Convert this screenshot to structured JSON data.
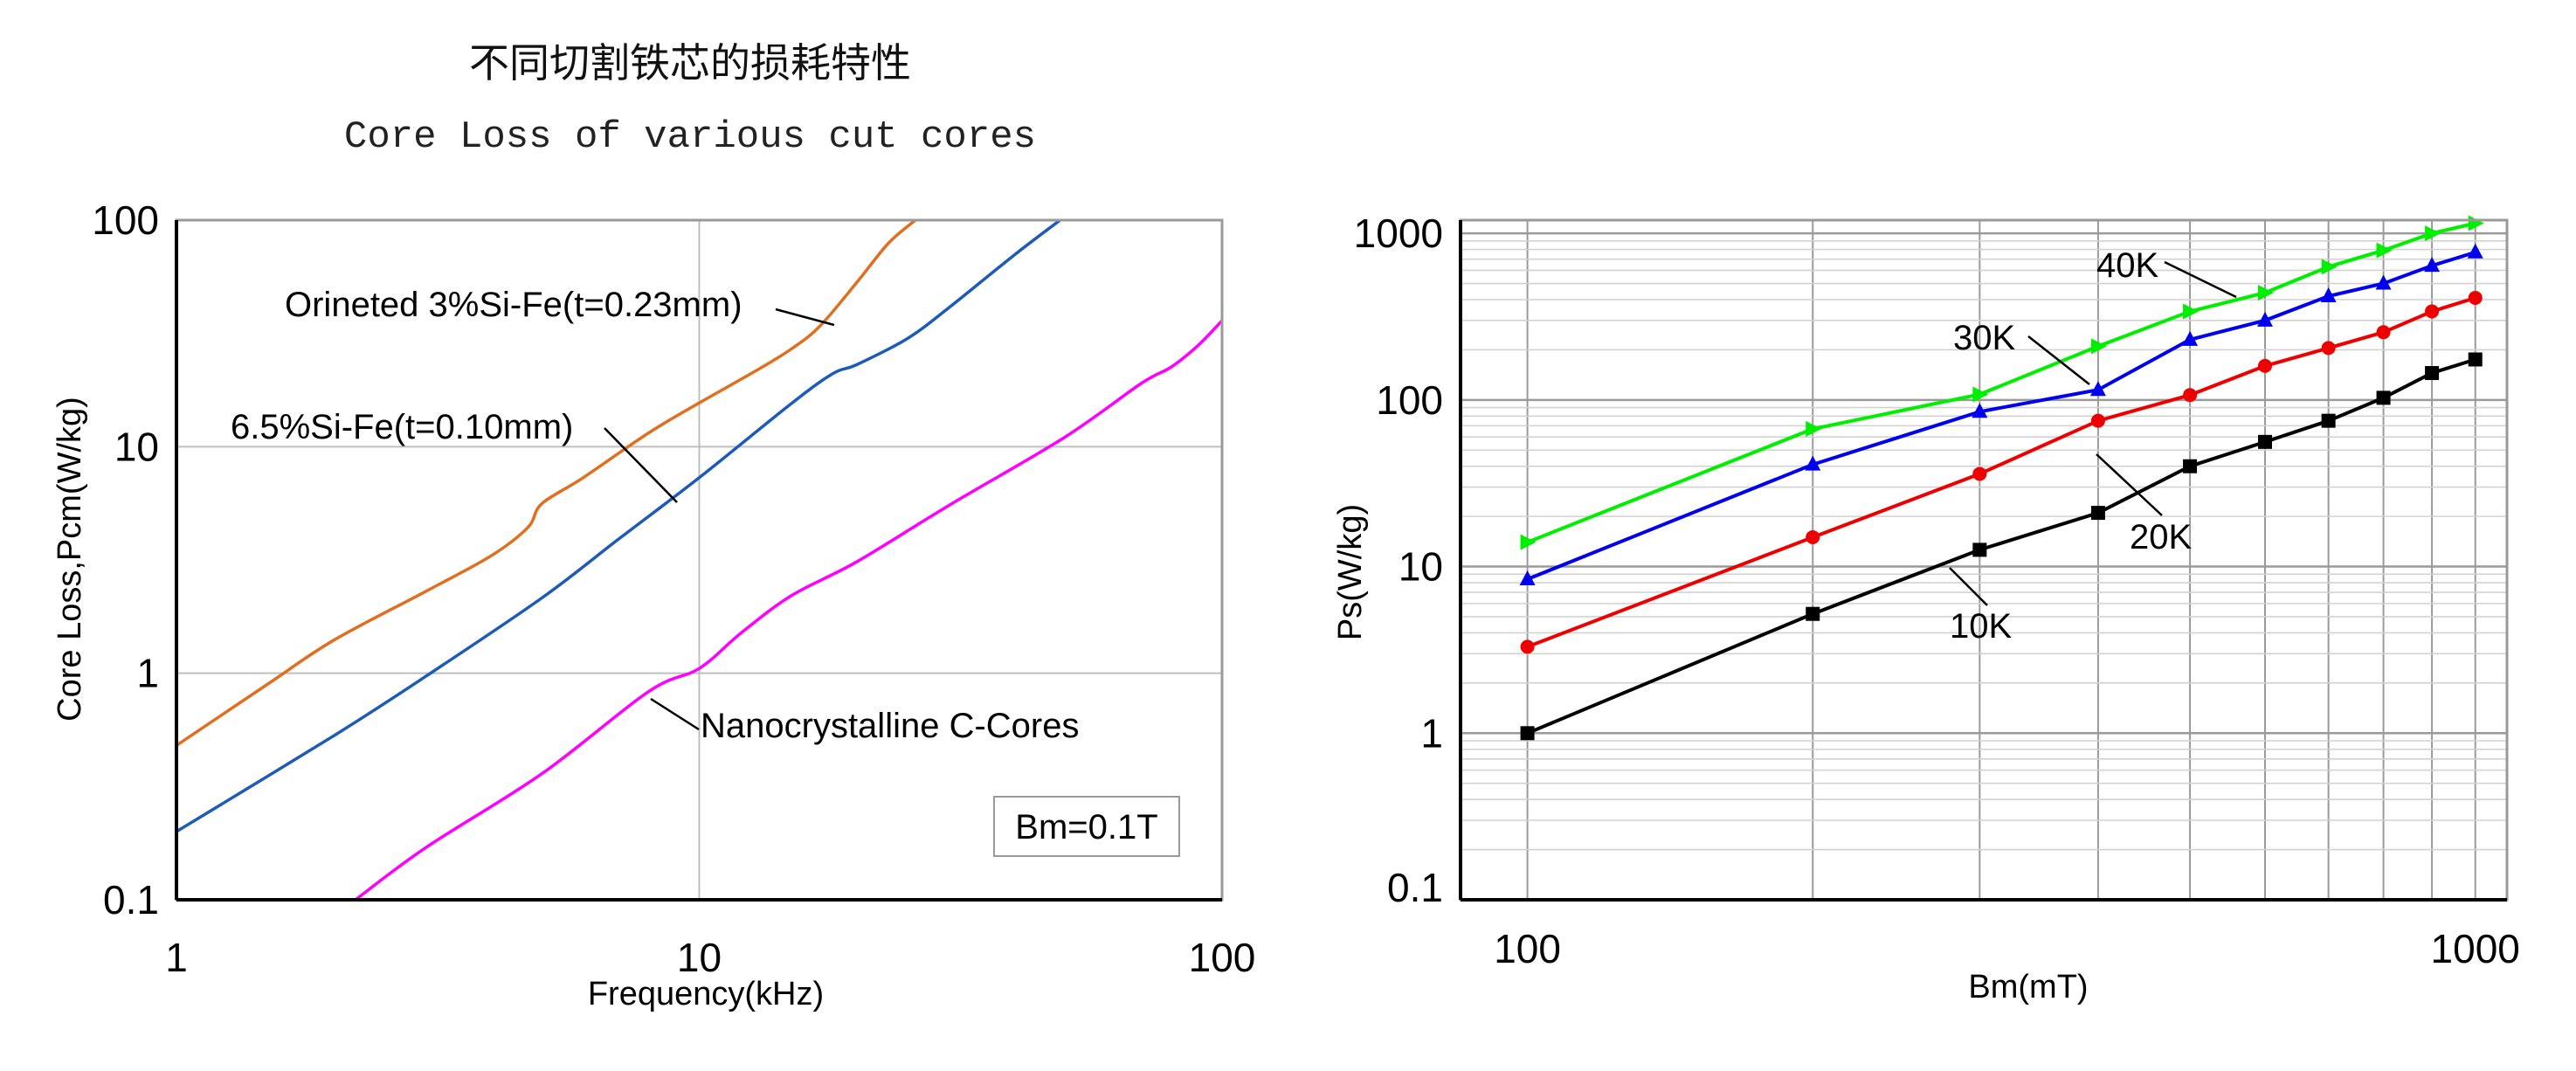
{
  "header": {
    "title_cn": "不同切割铁芯的损耗特性",
    "title_en": "Core Loss of various cut cores"
  },
  "colors": {
    "orange": "#e07020",
    "blue": "#1e5bb8",
    "magenta": "#ff00ff",
    "green": "#00ee00",
    "blue2": "#0000ee",
    "red": "#ee0000",
    "black": "#000000",
    "grid": "#bfbfbf"
  },
  "chart_data": [
    {
      "type": "line",
      "title": "Core Loss of various cut cores",
      "xlabel": "Frequency(kHz)",
      "ylabel": "Core Loss,Pcm(W/kg)",
      "xscale": "log",
      "yscale": "log",
      "xlim": [
        1,
        100
      ],
      "ylim": [
        0.1,
        100
      ],
      "xticks": [
        "1",
        "10",
        "100"
      ],
      "yticks": [
        "0.1",
        "1",
        "10",
        "100"
      ],
      "grid": true,
      "series": [
        {
          "name": "Orineted 3%Si-Fe(t=0.23mm)",
          "color": "orange",
          "points": [
            [
              1,
              0.48
            ],
            [
              1.5,
              0.9
            ],
            [
              2,
              1.4
            ],
            [
              3,
              2.3
            ],
            [
              4,
              3.3
            ],
            [
              4.7,
              4.4
            ],
            [
              5,
              5.6
            ],
            [
              6,
              7.3
            ],
            [
              8,
              11.5
            ],
            [
              10,
              15.6
            ],
            [
              13,
              22
            ],
            [
              15,
              27
            ],
            [
              17,
              34
            ],
            [
              20,
              53
            ],
            [
              23,
              79
            ],
            [
              25.9,
              100
            ]
          ]
        },
        {
          "name": "6.5%Si-Fe(t=0.10mm)",
          "color": "blue",
          "points": [
            [
              1,
              0.2
            ],
            [
              2,
              0.53
            ],
            [
              3,
              0.97
            ],
            [
              5,
              2.15
            ],
            [
              7,
              3.9
            ],
            [
              10,
              7.3
            ],
            [
              15,
              15.5
            ],
            [
              18,
              21
            ],
            [
              20,
              23
            ],
            [
              25,
              30
            ],
            [
              30,
              41
            ],
            [
              40,
              70
            ],
            [
              49,
              100
            ]
          ]
        },
        {
          "name": "Nanocrystalline C-Cores",
          "color": "magenta",
          "points": [
            [
              2.2,
              0.1
            ],
            [
              3,
              0.17
            ],
            [
              5,
              0.36
            ],
            [
              8,
              0.83
            ],
            [
              10,
              1.05
            ],
            [
              12,
              1.5
            ],
            [
              15,
              2.2
            ],
            [
              20,
              3.1
            ],
            [
              30,
              5.5
            ],
            [
              50,
              11
            ],
            [
              70,
              19
            ],
            [
              80,
              22.5
            ],
            [
              90,
              28
            ],
            [
              100,
              36
            ]
          ]
        }
      ],
      "annotations": [
        "Bm=0.1T"
      ]
    },
    {
      "type": "line",
      "xlabel": "Bm(mT)",
      "ylabel": "Ps(W/kg)",
      "xscale": "log",
      "yscale": "log",
      "xlim": [
        85,
        1080
      ],
      "ylim": [
        0.1,
        1200
      ],
      "xticks": [
        "100",
        "1000"
      ],
      "yticks": [
        "0.1",
        "1",
        "10",
        "100",
        "1000"
      ],
      "grid": true,
      "x": [
        100,
        200,
        300,
        400,
        500,
        600,
        700,
        800,
        900,
        1000
      ],
      "series": [
        {
          "name": "40K",
          "color": "green",
          "marker": "triangle-right",
          "values": [
            14,
            67,
            108,
            210,
            340,
            440,
            630,
            790,
            1000,
            1150
          ]
        },
        {
          "name": "30K",
          "color": "blue2",
          "marker": "triangle",
          "values": [
            8.4,
            41,
            85,
            115,
            230,
            300,
            420,
            500,
            640,
            770
          ]
        },
        {
          "name": "20K",
          "color": "red",
          "marker": "circle",
          "values": [
            3.3,
            15,
            36,
            75,
            107,
            160,
            205,
            255,
            340,
            410
          ]
        },
        {
          "name": "10K",
          "color": "black",
          "marker": "square",
          "values": [
            1.0,
            5.2,
            12.6,
            21,
            40,
            56,
            75,
            103,
            145,
            175
          ]
        }
      ]
    }
  ]
}
